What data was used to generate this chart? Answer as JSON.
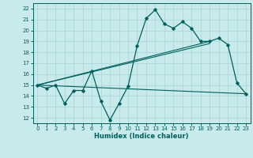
{
  "title": "",
  "xlabel": "Humidex (Indice chaleur)",
  "ylabel": "",
  "bg_color": "#c8eaea",
  "line_color": "#005f5f",
  "grid_color": "#a8d4d4",
  "xlim": [
    -0.5,
    23.5
  ],
  "ylim": [
    11.5,
    22.5
  ],
  "xticks": [
    0,
    1,
    2,
    3,
    4,
    5,
    6,
    7,
    8,
    9,
    10,
    11,
    12,
    13,
    14,
    15,
    16,
    17,
    18,
    19,
    20,
    21,
    22,
    23
  ],
  "yticks": [
    12,
    13,
    14,
    15,
    16,
    17,
    18,
    19,
    20,
    21,
    22
  ],
  "main_line_x": [
    0,
    1,
    2,
    3,
    4,
    5,
    6,
    7,
    8,
    9,
    10,
    11,
    12,
    13,
    14,
    15,
    16,
    17,
    18,
    19,
    20,
    21,
    22,
    23
  ],
  "main_line_y": [
    15.0,
    14.7,
    15.0,
    13.3,
    14.5,
    14.5,
    16.3,
    13.5,
    11.8,
    13.3,
    14.9,
    18.6,
    21.1,
    21.9,
    20.6,
    20.2,
    20.8,
    20.2,
    19.0,
    19.0,
    19.3,
    18.7,
    15.2,
    14.2
  ],
  "trend1_x": [
    0,
    19
  ],
  "trend1_y": [
    15.0,
    19.0
  ],
  "trend2_x": [
    0,
    23
  ],
  "trend2_y": [
    15.0,
    14.2
  ],
  "trend3_x": [
    0,
    19
  ],
  "trend3_y": [
    15.0,
    18.8
  ]
}
